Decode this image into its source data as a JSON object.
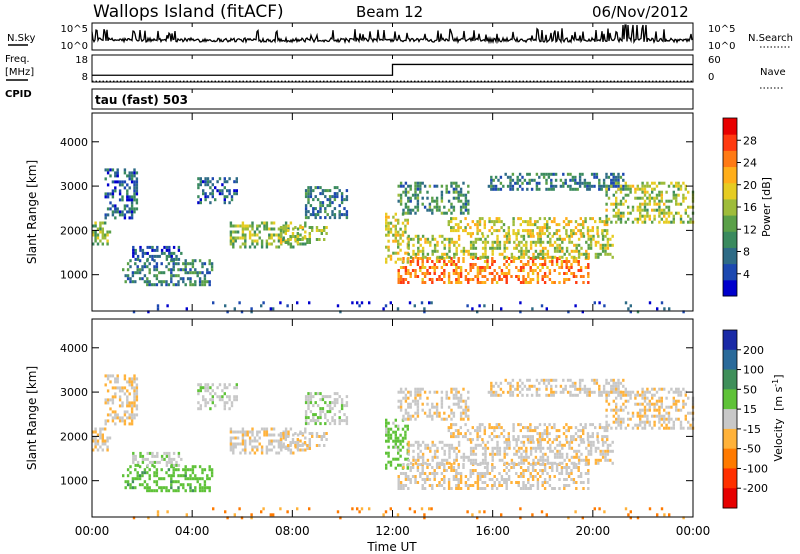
{
  "chart_data": {
    "type": "heatmap",
    "header": {
      "station": "Wallops Island (fitACF)",
      "beam": "Beam 12",
      "date": "06/Nov/2012"
    },
    "top_panel": {
      "left_label": "N.Sky",
      "right_label": "N.Search",
      "left_ticks": [
        "10^5",
        "10^0"
      ],
      "right_ticks": [
        "10^5",
        "10^0"
      ]
    },
    "freq_panel": {
      "left_label_1": "Freq.",
      "left_label_2": "[MHz]",
      "left_label_3": "CPID",
      "right_label": "Nave",
      "left_ticks": [
        "18",
        "8"
      ],
      "right_ticks": [
        "60",
        "0"
      ],
      "freq_mhz": {
        "x": [
          "00:00",
          "12:00",
          "00:00"
        ],
        "y": [
          10.5,
          14.5,
          14.5
        ]
      },
      "nave": {
        "x": [
          "00:00",
          "24:00"
        ],
        "y": [
          2,
          2
        ]
      }
    },
    "cpid_text": "tau (fast) 503",
    "x_axis": {
      "label": "Time UT",
      "ticks": [
        "00:00",
        "04:00",
        "08:00",
        "12:00",
        "16:00",
        "20:00",
        "00:00"
      ],
      "range_hours": [
        0,
        24
      ]
    },
    "y_axis": {
      "label": "Slant Range [km]",
      "ticks": [
        1000,
        2000,
        3000,
        4000
      ],
      "range": [
        180,
        4650
      ]
    },
    "power_panel": {
      "quantity": "Power",
      "unit": "[dB]",
      "colorbar_ticks": [
        4,
        8,
        12,
        16,
        20,
        24,
        28
      ],
      "colors": [
        "#0000cc",
        "#1c48b0",
        "#2e6b86",
        "#3a8a5e",
        "#5aa048",
        "#9ebc3a",
        "#e6cc22",
        "#ffae1a",
        "#ff7a14",
        "#ff3a10",
        "#e80000"
      ],
      "range": [
        0,
        32
      ]
    },
    "velocity_panel": {
      "quantity": "Velocity",
      "unit": "[m s^-1]",
      "colorbar_ticks": [
        200,
        100,
        50,
        15,
        -15,
        -50,
        -100,
        -200
      ],
      "colors": [
        "#1a2aa6",
        "#2a6a9a",
        "#3f8f5a",
        "#5fc238",
        "#c8c8c8",
        "#ffb23a",
        "#ff7a00",
        "#ff3000",
        "#e60000"
      ]
    },
    "echo_regions": [
      {
        "t0": 0.0,
        "t1": 0.7,
        "r0": 1700,
        "r1": 2200,
        "power": 14,
        "velocity": -5
      },
      {
        "t0": 0.5,
        "t1": 1.8,
        "r0": 2300,
        "r1": 3400,
        "power": 6,
        "velocity": -10
      },
      {
        "t0": 1.2,
        "t1": 4.8,
        "r0": 750,
        "r1": 1350,
        "power": 9,
        "velocity": 35
      },
      {
        "t0": 1.6,
        "t1": 3.6,
        "r0": 1350,
        "r1": 1650,
        "power": 6,
        "velocity": 10
      },
      {
        "t0": 4.2,
        "t1": 5.8,
        "r0": 2600,
        "r1": 3200,
        "power": 6,
        "velocity": 5
      },
      {
        "t0": 5.5,
        "t1": 8.5,
        "r0": 1650,
        "r1": 2200,
        "power": 15,
        "velocity": -5
      },
      {
        "t0": 7.5,
        "t1": 9.4,
        "r0": 1700,
        "r1": 2100,
        "power": 16,
        "velocity": -5
      },
      {
        "t0": 8.5,
        "t1": 10.2,
        "r0": 2300,
        "r1": 3000,
        "power": 8,
        "velocity": 5
      },
      {
        "t0": 11.7,
        "t1": 12.6,
        "r0": 1300,
        "r1": 2400,
        "power": 18,
        "velocity": 30
      },
      {
        "t0": 12.2,
        "t1": 19.8,
        "r0": 800,
        "r1": 1400,
        "power": 24,
        "velocity": -8
      },
      {
        "t0": 12.6,
        "t1": 20.8,
        "r0": 1400,
        "r1": 1900,
        "power": 17,
        "velocity": -5
      },
      {
        "t0": 14.2,
        "t1": 20.6,
        "r0": 1900,
        "r1": 2300,
        "power": 18,
        "velocity": -10
      },
      {
        "t0": 12.2,
        "t1": 15.0,
        "r0": 2400,
        "r1": 3100,
        "power": 10,
        "velocity": -5
      },
      {
        "t0": 15.8,
        "t1": 21.2,
        "r0": 2950,
        "r1": 3300,
        "power": 8,
        "velocity": -5
      },
      {
        "t0": 20.5,
        "t1": 24.0,
        "r0": 2200,
        "r1": 3100,
        "power": 16,
        "velocity": -8
      },
      {
        "t0": 0.0,
        "t1": 24.0,
        "r0": 180,
        "r1": 400,
        "power": 4,
        "velocity": -60
      }
    ]
  }
}
